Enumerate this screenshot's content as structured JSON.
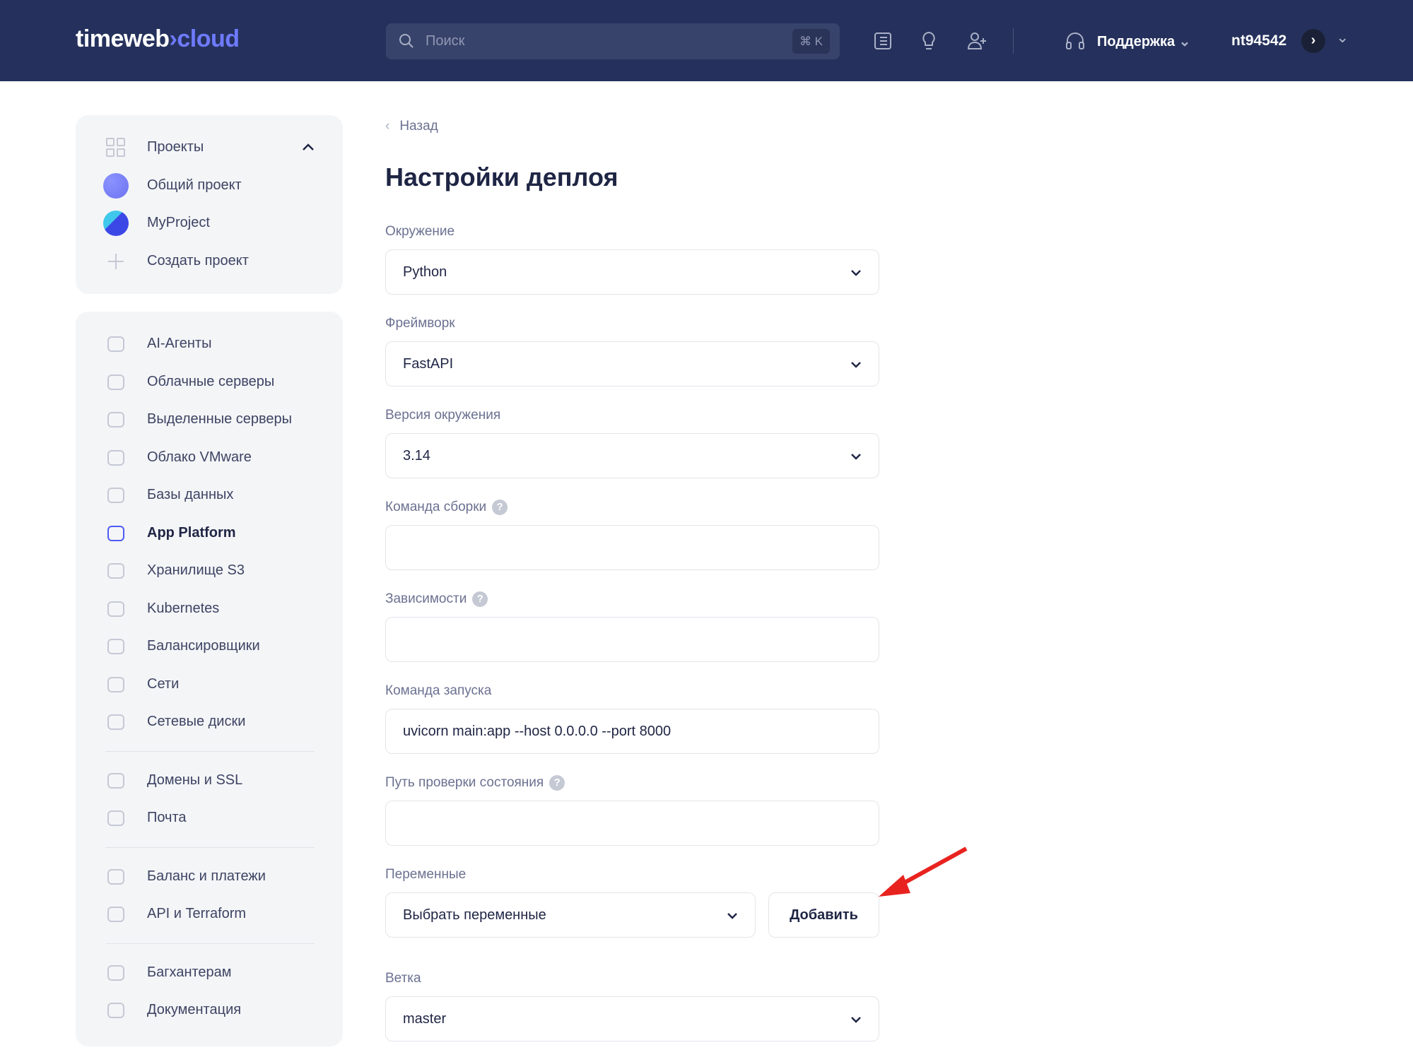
{
  "header": {
    "logo_main": "timeweb",
    "logo_accent": "cloud",
    "search_placeholder": "Поиск",
    "search_shortcut": "⌘ K",
    "support_label": "Поддержка",
    "username": "nt94542"
  },
  "projects": {
    "title": "Проекты",
    "items": [
      {
        "label": "Общий проект"
      },
      {
        "label": "MyProject"
      }
    ],
    "create_label": "Создать проект"
  },
  "sidebar": {
    "groups": [
      [
        {
          "label": "AI-Агенты",
          "icon": "robot-icon"
        },
        {
          "label": "Облачные серверы",
          "icon": "cloud-icon"
        },
        {
          "label": "Выделенные серверы",
          "icon": "server-icon"
        },
        {
          "label": "Облако VMware",
          "icon": "vmware-icon"
        },
        {
          "label": "Базы данных",
          "icon": "database-icon"
        },
        {
          "label": "App Platform",
          "icon": "apps-icon",
          "active": true
        },
        {
          "label": "Хранилище S3",
          "icon": "cube-icon"
        },
        {
          "label": "Kubernetes",
          "icon": "kubernetes-icon"
        },
        {
          "label": "Балансировщики",
          "icon": "arrows-icon"
        },
        {
          "label": "Сети",
          "icon": "network-icon"
        },
        {
          "label": "Сетевые диски",
          "icon": "disk-icon"
        }
      ],
      [
        {
          "label": "Домены и SSL",
          "icon": "globe-icon"
        },
        {
          "label": "Почта",
          "icon": "mail-icon"
        }
      ],
      [
        {
          "label": "Баланс и платежи",
          "icon": "card-icon"
        },
        {
          "label": "API и Terraform",
          "icon": "api-icon"
        }
      ],
      [
        {
          "label": "Багхантерам",
          "icon": "bug-icon"
        },
        {
          "label": "Документация",
          "icon": "help-icon"
        }
      ]
    ]
  },
  "main": {
    "back_label": "Назад",
    "title": "Настройки деплоя",
    "fields": [
      {
        "label": "Окружение",
        "value": "Python",
        "type": "select"
      },
      {
        "label": "Фреймворк",
        "value": "FastAPI",
        "type": "select"
      },
      {
        "label": "Версия окружения",
        "value": "3.14",
        "type": "select"
      },
      {
        "label": "Команда сборки",
        "value": "",
        "type": "input",
        "help": "?"
      },
      {
        "label": "Зависимости",
        "value": "",
        "type": "input",
        "help": "?"
      },
      {
        "label": "Команда запуска",
        "value": "uvicorn main:app --host 0.0.0.0 --port 8000",
        "type": "input"
      },
      {
        "label": "Путь проверки состояния",
        "value": "",
        "type": "input",
        "help": "?"
      }
    ],
    "variables": {
      "label": "Переменные",
      "placeholder": "Выбрать переменные",
      "add_label": "Добавить"
    },
    "branch": {
      "label": "Ветка",
      "value": "master"
    }
  },
  "colors": {
    "header_bg": "#25315c",
    "accent": "#6f7bff",
    "annotation_arrow": "#e8231f"
  }
}
